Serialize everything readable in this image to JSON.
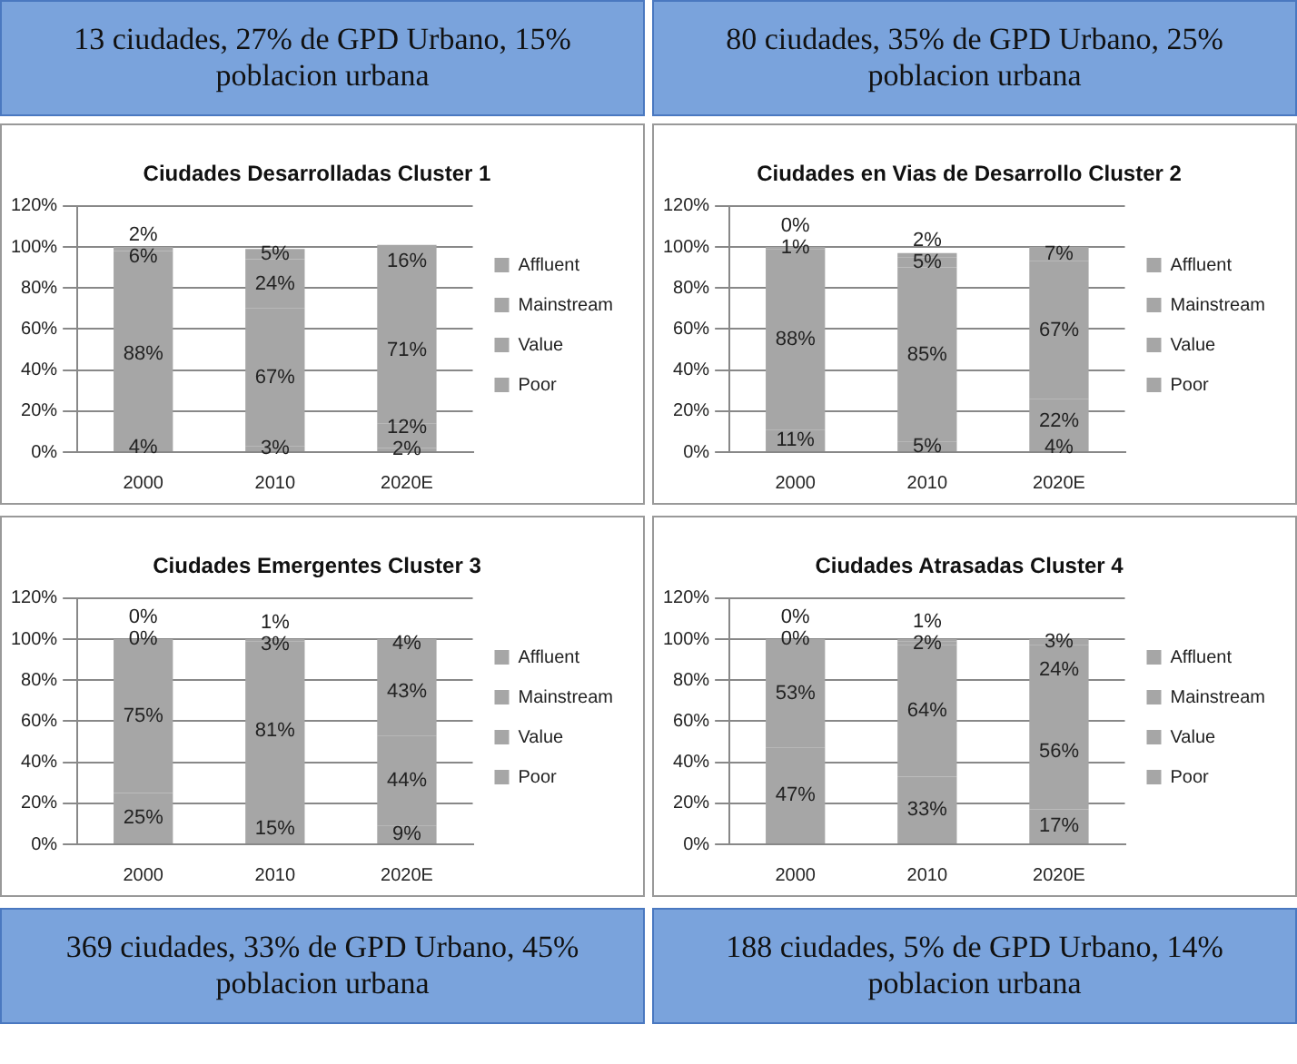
{
  "chart_data": [
    {
      "type": "bar",
      "title": "Ciudades Desarrolladas Cluster 1",
      "subtitle": "13 ciudades, 27% de GPD Urbano, 15% poblacion urbana",
      "categories": [
        "2000",
        "2010",
        "2020E"
      ],
      "stacked": true,
      "legend": "right",
      "grid": "y",
      "ylim": [
        0,
        120
      ],
      "yticks": [
        {
          "value": 0,
          "label": "0%"
        },
        {
          "value": 20,
          "label": "20%"
        },
        {
          "value": 40,
          "label": "40%"
        },
        {
          "value": 60,
          "label": "60%"
        },
        {
          "value": 80,
          "label": "80%"
        },
        {
          "value": 100,
          "label": "100%"
        },
        {
          "value": 120,
          "label": "120%"
        }
      ],
      "series": [
        {
          "name": "Poor",
          "color": "#a6a6a6",
          "values": [
            4,
            3,
            2
          ],
          "value_labels": [
            "4%",
            "3%",
            "2%"
          ]
        },
        {
          "name": "Value",
          "color": "#a6a6a6",
          "values": [
            88,
            67,
            12
          ],
          "value_labels": [
            "88%",
            "67%",
            "12%"
          ]
        },
        {
          "name": "Mainstream",
          "color": "#a6a6a6",
          "values": [
            6,
            24,
            71
          ],
          "value_labels": [
            "6%",
            "24%",
            "71%"
          ]
        },
        {
          "name": "Affluent",
          "color": "#a6a6a6",
          "values": [
            2,
            5,
            16
          ],
          "value_labels": [
            "2%",
            "5%",
            "16%"
          ]
        }
      ]
    },
    {
      "type": "bar",
      "title": "Ciudades en Vias de Desarrollo Cluster 2",
      "subtitle": "80 ciudades, 35% de GPD Urbano, 25% poblacion urbana",
      "categories": [
        "2000",
        "2010",
        "2020E"
      ],
      "stacked": true,
      "legend": "right",
      "grid": "y",
      "ylim": [
        0,
        120
      ],
      "yticks": [
        {
          "value": 0,
          "label": "0%"
        },
        {
          "value": 20,
          "label": "20%"
        },
        {
          "value": 40,
          "label": "40%"
        },
        {
          "value": 60,
          "label": "60%"
        },
        {
          "value": 80,
          "label": "80%"
        },
        {
          "value": 100,
          "label": "100%"
        },
        {
          "value": 120,
          "label": "120%"
        }
      ],
      "series": [
        {
          "name": "Poor",
          "color": "#a6a6a6",
          "values": [
            11,
            5,
            4
          ],
          "value_labels": [
            "11%",
            "5%",
            "4%"
          ]
        },
        {
          "name": "Value",
          "color": "#a6a6a6",
          "values": [
            88,
            85,
            22
          ],
          "value_labels": [
            "88%",
            "85%",
            "22%"
          ]
        },
        {
          "name": "Mainstream",
          "color": "#a6a6a6",
          "values": [
            1,
            5,
            67
          ],
          "value_labels": [
            "1%",
            "5%",
            "67%"
          ]
        },
        {
          "name": "Affluent",
          "color": "#a6a6a6",
          "values": [
            0,
            2,
            7
          ],
          "value_labels": [
            "0%",
            "2%",
            "7%"
          ]
        }
      ]
    },
    {
      "type": "bar",
      "title": "Ciudades Emergentes Cluster 3",
      "subtitle": "369 ciudades, 33% de GPD Urbano, 45% poblacion urbana",
      "categories": [
        "2000",
        "2010",
        "2020E"
      ],
      "stacked": true,
      "legend": "right",
      "grid": "y",
      "ylim": [
        0,
        120
      ],
      "yticks": [
        {
          "value": 0,
          "label": "0%"
        },
        {
          "value": 20,
          "label": "20%"
        },
        {
          "value": 40,
          "label": "40%"
        },
        {
          "value": 60,
          "label": "60%"
        },
        {
          "value": 80,
          "label": "80%"
        },
        {
          "value": 100,
          "label": "100%"
        },
        {
          "value": 120,
          "label": "120%"
        }
      ],
      "series": [
        {
          "name": "Poor",
          "color": "#a6a6a6",
          "values": [
            25,
            15,
            9
          ],
          "value_labels": [
            "25%",
            "15%",
            "9%"
          ]
        },
        {
          "name": "Value",
          "color": "#a6a6a6",
          "values": [
            75,
            81,
            44
          ],
          "value_labels": [
            "75%",
            "81%",
            "44%"
          ]
        },
        {
          "name": "Mainstream",
          "color": "#a6a6a6",
          "values": [
            0,
            3,
            43
          ],
          "value_labels": [
            "0%",
            "3%",
            "43%"
          ]
        },
        {
          "name": "Affluent",
          "color": "#a6a6a6",
          "values": [
            0,
            1,
            4
          ],
          "value_labels": [
            "0%",
            "1%",
            "4%"
          ]
        }
      ]
    },
    {
      "type": "bar",
      "title": "Ciudades Atrasadas Cluster 4",
      "subtitle": "188 ciudades, 5% de GPD Urbano, 14% poblacion urbana",
      "categories": [
        "2000",
        "2010",
        "2020E"
      ],
      "stacked": true,
      "legend": "right",
      "grid": "y",
      "ylim": [
        0,
        120
      ],
      "yticks": [
        {
          "value": 0,
          "label": "0%"
        },
        {
          "value": 20,
          "label": "20%"
        },
        {
          "value": 40,
          "label": "40%"
        },
        {
          "value": 60,
          "label": "60%"
        },
        {
          "value": 80,
          "label": "80%"
        },
        {
          "value": 100,
          "label": "100%"
        },
        {
          "value": 120,
          "label": "120%"
        }
      ],
      "series": [
        {
          "name": "Poor",
          "color": "#a6a6a6",
          "values": [
            47,
            33,
            17
          ],
          "value_labels": [
            "47%",
            "33%",
            "17%"
          ]
        },
        {
          "name": "Value",
          "color": "#a6a6a6",
          "values": [
            53,
            64,
            56
          ],
          "value_labels": [
            "53%",
            "64%",
            "56%"
          ]
        },
        {
          "name": "Mainstream",
          "color": "#a6a6a6",
          "values": [
            0,
            2,
            24
          ],
          "value_labels": [
            "0%",
            "2%",
            "24%"
          ]
        },
        {
          "name": "Affluent",
          "color": "#a6a6a6",
          "values": [
            0,
            1,
            3
          ],
          "value_labels": [
            "0%",
            "1%",
            "3%"
          ]
        }
      ]
    }
  ]
}
